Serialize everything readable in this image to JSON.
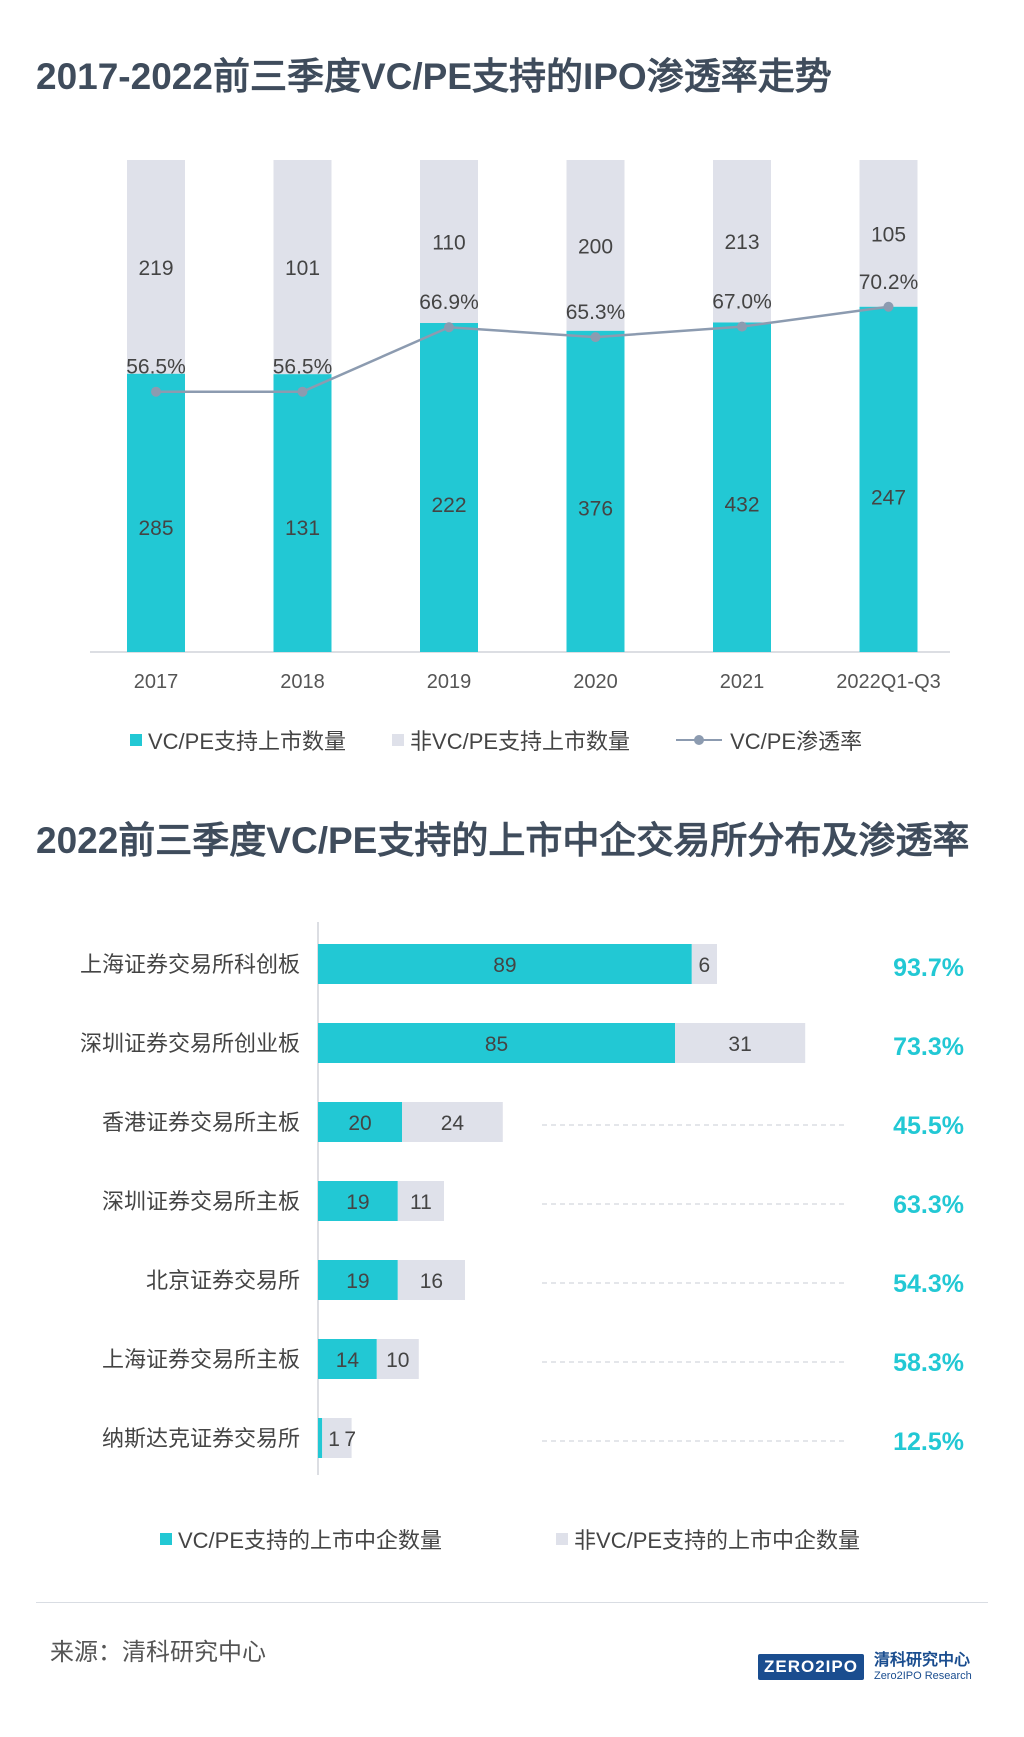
{
  "chart_data": [
    {
      "type": "bar",
      "stacked": true,
      "title": "2017-2022前三季度VC/PE支持的IPO渗透率走势",
      "categories": [
        "2017",
        "2018",
        "2019",
        "2020",
        "2021",
        "2022Q1-Q3"
      ],
      "series": [
        {
          "name": "VC/PE支持上市数量",
          "type": "bar",
          "color": "#22c8d4",
          "values": [
            285,
            131,
            222,
            376,
            432,
            247
          ]
        },
        {
          "name": "非VC/PE支持上市数量",
          "type": "bar",
          "color": "#dfe1ea",
          "values": [
            219,
            101,
            110,
            200,
            213,
            105
          ]
        },
        {
          "name": "VC/PE渗透率",
          "type": "line",
          "color": "#8c9bb0",
          "values": [
            56.5,
            56.5,
            66.9,
            65.3,
            67.0,
            70.2
          ],
          "labels": [
            "56.5%",
            "56.5%",
            "66.9%",
            "65.3%",
            "67.0%",
            "70.2%"
          ]
        }
      ],
      "legend_position": "bottom",
      "grid": false
    },
    {
      "type": "bar",
      "orientation": "horizontal",
      "stacked": true,
      "title": "2022前三季度VC/PE支持的上市中企交易所分布及渗透率",
      "categories": [
        "上海证券交易所科创板",
        "深圳证券交易所创业板",
        "香港证券交易所主板",
        "深圳证券交易所主板",
        "北京证券交易所",
        "上海证券交易所主板",
        "纳斯达克证券交易所"
      ],
      "series": [
        {
          "name": "VC/PE支持的上市中企数量",
          "color": "#22c8d4",
          "values": [
            89,
            85,
            20,
            19,
            19,
            14,
            1
          ]
        },
        {
          "name": "非VC/PE支持的上市中企数量",
          "color": "#dfe1ea",
          "values": [
            6,
            31,
            24,
            11,
            16,
            10,
            7
          ]
        }
      ],
      "penetration_rates": [
        "93.7%",
        "73.3%",
        "45.5%",
        "63.3%",
        "54.3%",
        "58.3%",
        "12.5%"
      ],
      "penetration_color": "#22c8d4",
      "legend_position": "bottom",
      "grid": false
    }
  ],
  "source": "来源：清科研究中心",
  "logo": {
    "mark": "ZERO2IPO",
    "name_cn": "清科研究中心",
    "name_en": "Zero2IPO Research"
  }
}
